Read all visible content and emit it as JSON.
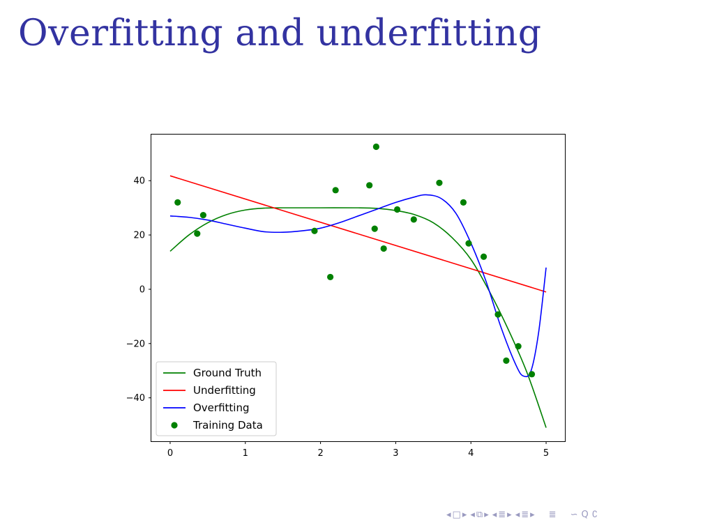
{
  "slide": {
    "title": "Overfitting and underfitting"
  },
  "nav": {
    "prev_frame": "◂",
    "frame": "□",
    "next_frame": "▸",
    "prev_sub": "◂",
    "sub": "⧉",
    "next_sub": "▸",
    "prev_section": "◂",
    "section": "≣",
    "next_section": "▸",
    "prev_subsection": "◂",
    "subsection": "≣",
    "next_subsection": "▸",
    "align": "≣",
    "search": "∽",
    "zoom": "Q",
    "undo": "∁"
  },
  "colors": {
    "title": "#3333a1",
    "ground_truth": "#008000",
    "underfitting": "#ff0000",
    "overfitting": "#0000ff",
    "training_data": "#008000"
  },
  "chart_data": {
    "type": "line",
    "title": "",
    "xlabel": "",
    "ylabel": "",
    "xlim": [
      -0.25,
      5.25
    ],
    "ylim": [
      -56,
      57
    ],
    "xticks": [
      0,
      1,
      2,
      3,
      4,
      5
    ],
    "yticks": [
      -40,
      -20,
      0,
      20,
      40
    ],
    "ytick_labels": [
      "−40",
      "−20",
      "0",
      "20",
      "40"
    ],
    "grid": false,
    "legend_position": "lower-left",
    "series": [
      {
        "name": "Ground Truth",
        "kind": "line",
        "color": "#008000",
        "x": [
          0,
          0.25,
          0.5,
          0.75,
          1.0,
          1.25,
          1.5,
          2.0,
          2.5,
          2.75,
          3.0,
          3.25,
          3.5,
          3.75,
          4.0,
          4.25,
          4.5,
          4.75,
          5.0
        ],
        "y": [
          14,
          20,
          24.5,
          27.5,
          29.2,
          29.9,
          30,
          30,
          30,
          29.8,
          29,
          27.5,
          24.5,
          19,
          11,
          -1,
          -15,
          -31,
          -51
        ]
      },
      {
        "name": "Underfitting",
        "kind": "line",
        "color": "#ff0000",
        "x": [
          0,
          5
        ],
        "y": [
          41.8,
          -1
        ]
      },
      {
        "name": "Overfitting",
        "kind": "line",
        "color": "#0000ff",
        "x": [
          0,
          0.25,
          0.5,
          0.75,
          1.0,
          1.25,
          1.5,
          1.75,
          2.0,
          2.25,
          2.5,
          2.75,
          3.0,
          3.25,
          3.4,
          3.6,
          3.8,
          4.0,
          4.2,
          4.4,
          4.6,
          4.7,
          4.8,
          4.9,
          5.0
        ],
        "y": [
          27,
          26.5,
          25.5,
          24,
          22.5,
          21.2,
          21,
          21.5,
          22.5,
          24.5,
          27,
          29.5,
          32,
          34,
          34.8,
          33.5,
          28,
          17,
          3,
          -14,
          -28,
          -32,
          -30,
          -16,
          8
        ]
      },
      {
        "name": "Training Data",
        "kind": "scatter",
        "color": "#008000",
        "x": [
          0.1,
          0.36,
          0.44,
          1.92,
          2.13,
          2.2,
          2.65,
          2.72,
          2.74,
          2.84,
          3.02,
          3.24,
          3.58,
          3.9,
          3.97,
          4.17,
          4.36,
          4.47,
          4.63,
          4.81
        ],
        "y": [
          32,
          20.5,
          27.3,
          21.5,
          4.5,
          36.5,
          38.3,
          22.3,
          52.5,
          15,
          29.4,
          25.7,
          39.2,
          32,
          16.9,
          12,
          -9.3,
          -26.3,
          -21,
          -31.3
        ]
      }
    ]
  }
}
